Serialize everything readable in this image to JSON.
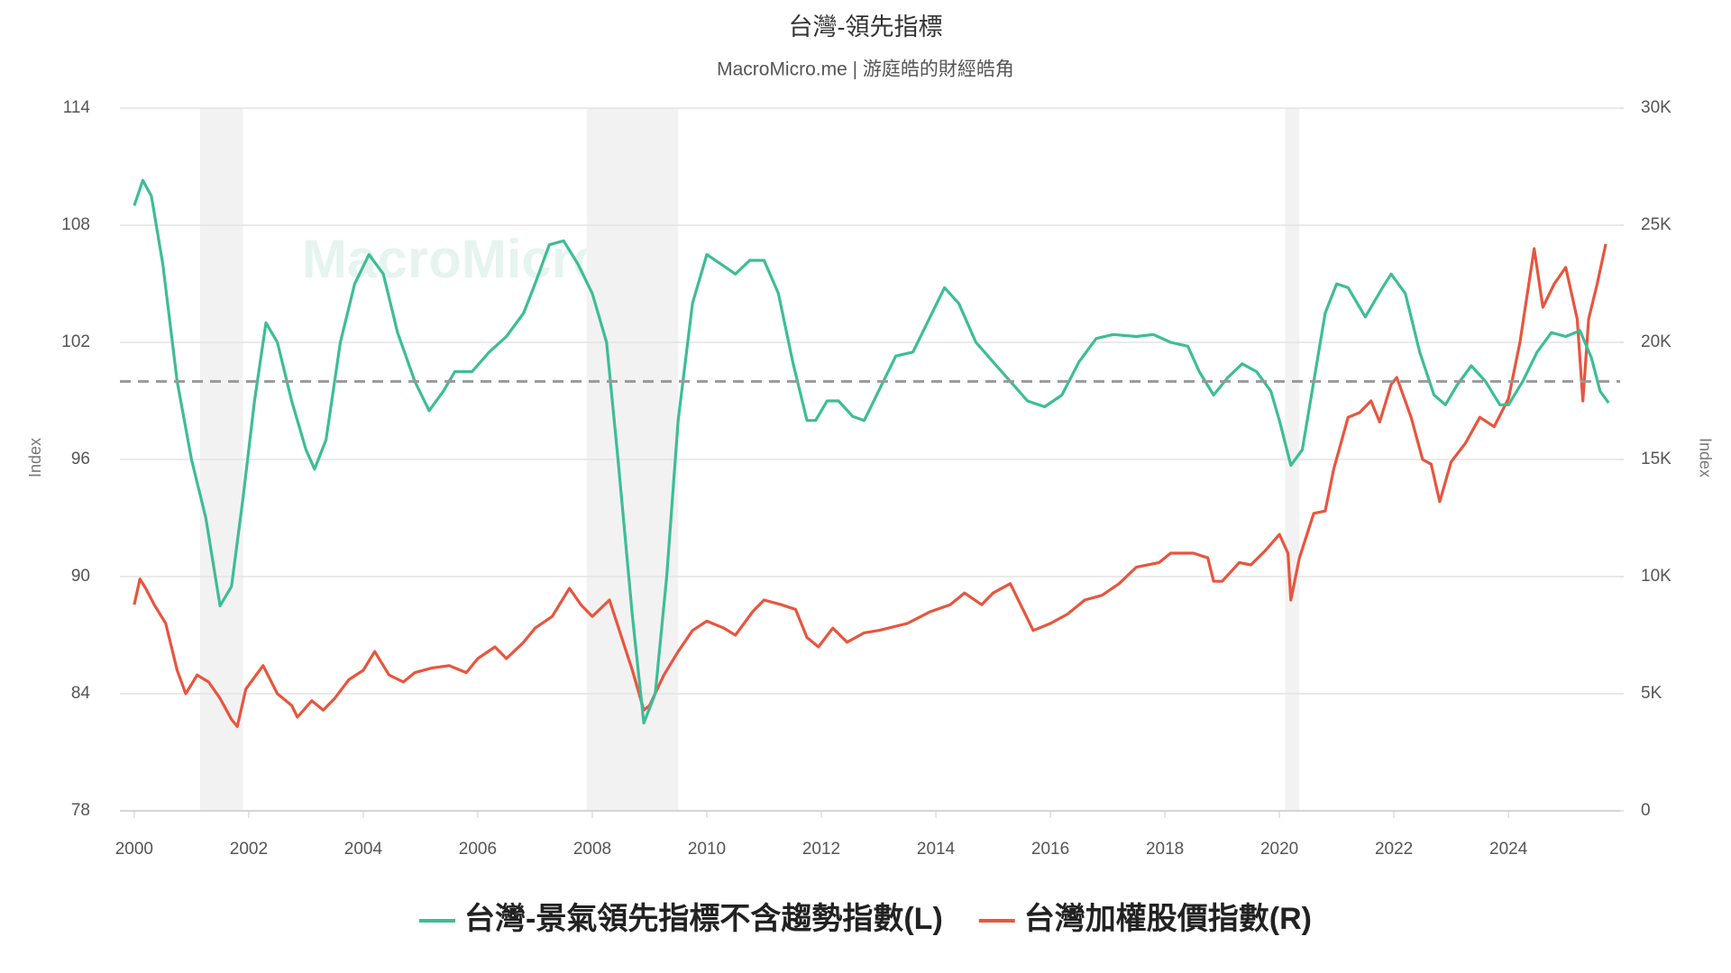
{
  "chart_data": {
    "type": "line",
    "title": "台灣-領先指標",
    "subtitle": "MacroMicro.me | 游庭皓的財經皓角",
    "watermark": "MacroMicro",
    "y_label": "Index",
    "y2_label": "Index",
    "xlim": [
      1999.75,
      2025.95
    ],
    "xticks": [
      2000,
      2002,
      2004,
      2006,
      2008,
      2010,
      2012,
      2014,
      2016,
      2018,
      2020,
      2022,
      2024
    ],
    "ylim": [
      78,
      114
    ],
    "yticks": [
      78,
      84,
      90,
      96,
      102,
      108,
      114
    ],
    "y2lim": [
      0,
      30000
    ],
    "y2ticks": [
      0,
      {
        "value": 5000,
        "label": "5K"
      },
      {
        "value": 10000,
        "label": "10K"
      },
      {
        "value": 15000,
        "label": "15K"
      },
      {
        "value": 20000,
        "label": "20K"
      },
      {
        "value": 25000,
        "label": "25K"
      },
      {
        "value": 30000,
        "label": "30K"
      }
    ],
    "grid": true,
    "legend": "bottom",
    "reference_line": 100,
    "shaded_periods": [
      [
        2001.15,
        2001.9
      ],
      [
        2007.9,
        2009.5
      ],
      [
        2020.1,
        2020.35
      ]
    ],
    "series": [
      {
        "name": "台灣-景氣領先指標不含趨勢指數(L)",
        "color": "#3dbd96",
        "axis": "y",
        "x": [
          2000.0,
          2000.15,
          2000.3,
          2000.5,
          2000.75,
          2001.0,
          2001.25,
          2001.5,
          2001.7,
          2001.9,
          2002.1,
          2002.3,
          2002.5,
          2002.75,
          2003.0,
          2003.15,
          2003.35,
          2003.6,
          2003.85,
          2004.1,
          2004.35,
          2004.6,
          2004.9,
          2005.15,
          2005.4,
          2005.6,
          2005.9,
          2006.2,
          2006.5,
          2006.8,
          2007.0,
          2007.25,
          2007.5,
          2007.75,
          2008.0,
          2008.25,
          2008.45,
          2008.7,
          2008.9,
          2009.1,
          2009.3,
          2009.5,
          2009.75,
          2010.0,
          2010.25,
          2010.5,
          2010.75,
          2011.0,
          2011.25,
          2011.5,
          2011.75,
          2011.9,
          2012.1,
          2012.3,
          2012.55,
          2012.75,
          2013.0,
          2013.3,
          2013.6,
          2013.85,
          2014.15,
          2014.4,
          2014.7,
          2015.0,
          2015.3,
          2015.6,
          2015.9,
          2016.2,
          2016.5,
          2016.8,
          2017.1,
          2017.5,
          2017.8,
          2018.1,
          2018.4,
          2018.6,
          2018.85,
          2019.1,
          2019.35,
          2019.6,
          2019.85,
          2020.0,
          2020.2,
          2020.4,
          2020.6,
          2020.8,
          2021.0,
          2021.2,
          2021.5,
          2021.8,
          2021.95,
          2022.2,
          2022.45,
          2022.7,
          2022.9,
          2023.1,
          2023.35,
          2023.6,
          2023.85,
          2024.0,
          2024.25,
          2024.5,
          2024.75,
          2025.0,
          2025.25,
          2025.45,
          2025.6,
          2025.75
        ],
        "values": [
          109,
          110.3,
          109.5,
          106,
          100,
          96,
          93,
          88.5,
          89.5,
          94,
          99,
          103,
          102,
          99,
          96.5,
          95.5,
          97,
          102,
          105,
          106.5,
          105.5,
          102.5,
          100,
          98.5,
          99.5,
          100.5,
          100.5,
          101.5,
          102.3,
          103.5,
          105,
          107,
          107.2,
          106,
          104.5,
          102,
          96,
          88,
          82.5,
          84,
          90,
          98,
          104,
          106.5,
          106,
          105.5,
          106.2,
          106.2,
          104.5,
          101,
          98,
          98,
          99,
          99,
          98.2,
          98,
          99.5,
          101.3,
          101.5,
          103,
          104.8,
          104,
          102,
          101,
          100,
          99,
          98.7,
          99.3,
          101,
          102.2,
          102.4,
          102.3,
          102.4,
          102,
          101.8,
          100.5,
          99.3,
          100.2,
          100.9,
          100.5,
          99.5,
          98,
          95.7,
          96.5,
          100,
          103.5,
          105,
          104.8,
          103.3,
          104.8,
          105.5,
          104.5,
          101.5,
          99.3,
          98.8,
          99.8,
          100.8,
          100,
          98.8,
          98.8,
          100,
          101.5,
          102.5,
          102.3,
          102.6,
          101.2,
          99.5,
          98.9
        ]
      },
      {
        "name": "台灣加權股價指數(R)",
        "color": "#e8553e",
        "axis": "y2",
        "x": [
          2000.0,
          2000.1,
          2000.2,
          2000.35,
          2000.55,
          2000.75,
          2000.9,
          2001.1,
          2001.3,
          2001.5,
          2001.7,
          2001.8,
          2001.95,
          2002.25,
          2002.5,
          2002.75,
          2002.85,
          2003.1,
          2003.3,
          2003.5,
          2003.75,
          2004.0,
          2004.2,
          2004.45,
          2004.7,
          2004.9,
          2005.2,
          2005.5,
          2005.8,
          2006.0,
          2006.3,
          2006.5,
          2006.8,
          2007.0,
          2007.3,
          2007.6,
          2007.8,
          2008.0,
          2008.3,
          2008.5,
          2008.7,
          2008.9,
          2009.0,
          2009.25,
          2009.5,
          2009.75,
          2010.0,
          2010.3,
          2010.5,
          2010.8,
          2011.0,
          2011.3,
          2011.55,
          2011.75,
          2011.95,
          2012.2,
          2012.45,
          2012.75,
          2013.0,
          2013.5,
          2013.9,
          2014.25,
          2014.5,
          2014.8,
          2015.0,
          2015.3,
          2015.6,
          2015.7,
          2016.0,
          2016.3,
          2016.6,
          2016.9,
          2017.2,
          2017.5,
          2017.9,
          2018.1,
          2018.5,
          2018.75,
          2018.85,
          2019.0,
          2019.3,
          2019.5,
          2019.75,
          2020.0,
          2020.15,
          2020.2,
          2020.35,
          2020.6,
          2020.8,
          2020.95,
          2021.2,
          2021.4,
          2021.6,
          2021.75,
          2021.95,
          2022.05,
          2022.3,
          2022.5,
          2022.65,
          2022.8,
          2023.0,
          2023.25,
          2023.5,
          2023.75,
          2024.0,
          2024.2,
          2024.45,
          2024.6,
          2024.8,
          2025.0,
          2025.2,
          2025.3,
          2025.4,
          2025.55,
          2025.7
        ],
        "values": [
          8800,
          9900,
          9500,
          8800,
          8000,
          6000,
          5000,
          5800,
          5500,
          4800,
          3900,
          3600,
          5200,
          6200,
          5000,
          4500,
          4000,
          4700,
          4300,
          4800,
          5600,
          6000,
          6800,
          5800,
          5500,
          5900,
          6100,
          6200,
          5900,
          6500,
          7000,
          6500,
          7200,
          7800,
          8300,
          9500,
          8800,
          8300,
          9000,
          7500,
          6000,
          4300,
          4500,
          5800,
          6800,
          7700,
          8100,
          7800,
          7500,
          8500,
          9000,
          8800,
          8600,
          7400,
          7000,
          7800,
          7200,
          7600,
          7700,
          8000,
          8500,
          8800,
          9300,
          8800,
          9300,
          9700,
          8200,
          7700,
          8000,
          8400,
          9000,
          9200,
          9700,
          10400,
          10600,
          11000,
          11000,
          10800,
          9800,
          9800,
          10600,
          10500,
          11100,
          11800,
          11000,
          9000,
          10800,
          12700,
          12800,
          14600,
          16800,
          17000,
          17500,
          16600,
          18200,
          18500,
          16800,
          15000,
          14800,
          13200,
          14900,
          15700,
          16800,
          16400,
          17600,
          20000,
          24000,
          21500,
          22500,
          23200,
          21000,
          17500,
          21000,
          22500,
          24200
        ]
      }
    ]
  }
}
